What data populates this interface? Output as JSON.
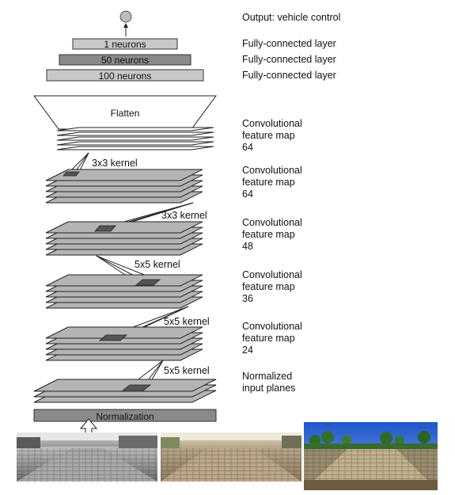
{
  "output": {
    "label": "Output: vehicle control"
  },
  "fully_connected": [
    {
      "neurons": "1  neurons",
      "label": "Fully-connected layer"
    },
    {
      "neurons": "50 neurons",
      "label": "Fully-connected layer"
    },
    {
      "neurons": "100 neurons",
      "label": "Fully-connected layer"
    }
  ],
  "flatten": {
    "label": "Flatten"
  },
  "conv_layers": [
    {
      "line1": "Convolutional",
      "line2": "feature map",
      "line3": "64",
      "kernel": "3x3 kernel"
    },
    {
      "line1": "Convolutional",
      "line2": "feature map",
      "line3": "64",
      "kernel": "3x3 kernel"
    },
    {
      "line1": "Convolutional",
      "line2": "feature map",
      "line3": "48",
      "kernel": "5x5 kernel"
    },
    {
      "line1": "Convolutional",
      "line2": "feature map",
      "line3": "36",
      "kernel": "5x5 kernel"
    },
    {
      "line1": "Convolutional",
      "line2": "feature map",
      "line3": "24",
      "kernel": "5x5 kernel"
    }
  ],
  "input_planes": {
    "line1": "Normalized",
    "line2": "input planes"
  },
  "normalization": {
    "label": "Normalization"
  },
  "colors": {
    "fc_light": "#c8c8c8",
    "fc_dark": "#8a8a8a",
    "plane_fill": "#b4b4b4",
    "kernel_fill": "#555555",
    "road_gray": "#8c8c8c",
    "road_sepia": "#b09a7c",
    "sky_blue": "#1c63d8"
  }
}
